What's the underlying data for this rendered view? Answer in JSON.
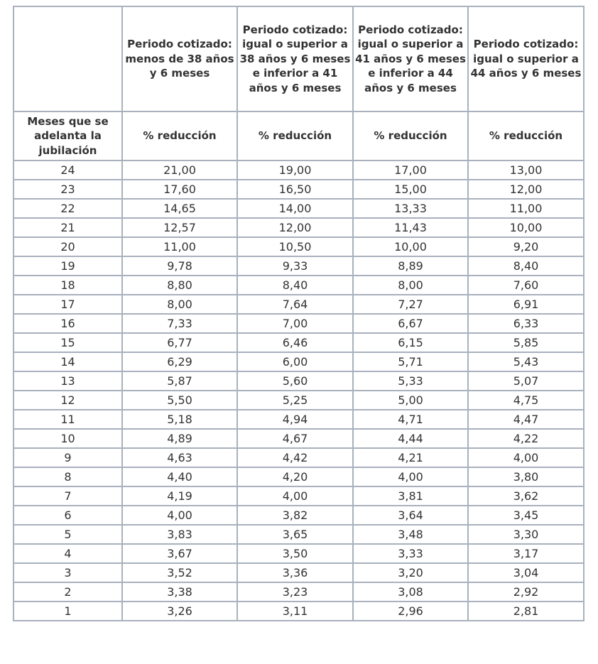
{
  "table": {
    "header_periods": [
      "",
      "Periodo cotizado: menos de 38 años y 6 meses",
      "Periodo cotizado: igual o superior a 38 años y 6 meses e inferior a 41 años y 6 meses",
      "Periodo cotizado: igual o superior a 41 años y 6 meses e inferior a 44 años y 6 meses",
      "Periodo cotizado: igual o superior a 44 años y 6 meses"
    ],
    "subheader": [
      "Meses que se adelanta la jubilación",
      "% reducción",
      "% reducción",
      "% reducción",
      "% reducción"
    ],
    "rows": [
      [
        "24",
        "21,00",
        "19,00",
        "17,00",
        "13,00"
      ],
      [
        "23",
        "17,60",
        "16,50",
        "15,00",
        "12,00"
      ],
      [
        "22",
        "14,65",
        "14,00",
        "13,33",
        "11,00"
      ],
      [
        "21",
        "12,57",
        "12,00",
        "11,43",
        "10,00"
      ],
      [
        "20",
        "11,00",
        "10,50",
        "10,00",
        "9,20"
      ],
      [
        "19",
        "9,78",
        "9,33",
        "8,89",
        "8,40"
      ],
      [
        "18",
        "8,80",
        "8,40",
        "8,00",
        "7,60"
      ],
      [
        "17",
        "8,00",
        "7,64",
        "7,27",
        "6,91"
      ],
      [
        "16",
        "7,33",
        "7,00",
        "6,67",
        "6,33"
      ],
      [
        "15",
        "6,77",
        "6,46",
        "6,15",
        "5,85"
      ],
      [
        "14",
        "6,29",
        "6,00",
        "5,71",
        "5,43"
      ],
      [
        "13",
        "5,87",
        "5,60",
        "5,33",
        "5,07"
      ],
      [
        "12",
        "5,50",
        "5,25",
        "5,00",
        "4,75"
      ],
      [
        "11",
        "5,18",
        "4,94",
        "4,71",
        "4,47"
      ],
      [
        "10",
        "4,89",
        "4,67",
        "4,44",
        "4,22"
      ],
      [
        "9",
        "4,63",
        "4,42",
        "4,21",
        "4,00"
      ],
      [
        "8",
        "4,40",
        "4,20",
        "4,00",
        "3,80"
      ],
      [
        "7",
        "4,19",
        "4,00",
        "3,81",
        "3,62"
      ],
      [
        "6",
        "4,00",
        "3,82",
        "3,64",
        "3,45"
      ],
      [
        "5",
        "3,83",
        "3,65",
        "3,48",
        "3,30"
      ],
      [
        "4",
        "3,67",
        "3,50",
        "3,33",
        "3,17"
      ],
      [
        "3",
        "3,52",
        "3,36",
        "3,20",
        "3,04"
      ],
      [
        "2",
        "3,38",
        "3,23",
        "3,08",
        "2,92"
      ],
      [
        "1",
        "3,26",
        "3,11",
        "2,96",
        "2,81"
      ]
    ]
  },
  "colors": {
    "border": "#a8b1bd",
    "text": "#333333"
  }
}
